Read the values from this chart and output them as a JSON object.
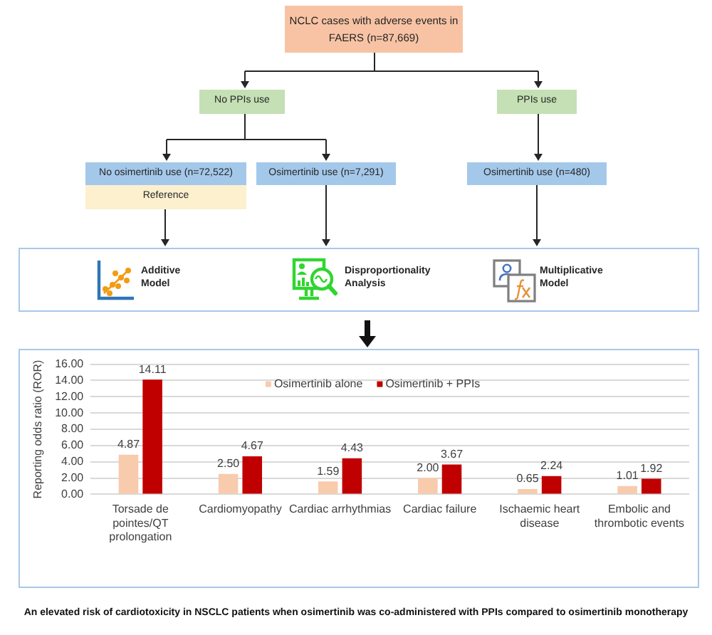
{
  "chart_data": [
    {
      "type": "other",
      "annotations": [
        "NCLC cases with adverse events in FAERS (n=87,669)",
        "No PPIs use",
        "PPIs use",
        "No osimertinib use (n=72,522)",
        "Osimertinib use (n=7,291)",
        "Osimertinib use (n=480)",
        "Reference",
        "Additive Model",
        "Disproportionality Analysis",
        "Multiplicative Model"
      ]
    },
    {
      "type": "bar",
      "ylabel": "Reporting odds ratio (ROR)",
      "categories": [
        "Torsade de pointes/QT prolongation",
        "Cardiomyopathy",
        "Cardiac arrhythmias",
        "Cardiac failure",
        "Ischaemic heart disease",
        "Embolic and thrombotic events"
      ],
      "series": [
        {
          "name": "Osimertinib alone",
          "color": "#f8cbad",
          "values": [
            4.87,
            2.5,
            1.59,
            2.0,
            0.65,
            1.01
          ],
          "value_labels": [
            "4.87",
            "2.50",
            "1.59",
            "2.00",
            "0.65",
            "1.01"
          ]
        },
        {
          "name": "Osimertinib + PPIs",
          "color": "#c00000",
          "values": [
            14.11,
            4.67,
            4.43,
            3.67,
            2.24,
            1.92
          ],
          "value_labels": [
            "14.11",
            "4.67",
            "4.43",
            "3.67",
            "2.24",
            "1.92"
          ]
        }
      ],
      "ylim": [
        0,
        16
      ],
      "yticks": [
        {
          "value": 0,
          "label": "0.00"
        },
        {
          "value": 2,
          "label": "2.00"
        },
        {
          "value": 4,
          "label": "4.00"
        },
        {
          "value": 6,
          "label": "6.00"
        },
        {
          "value": 8,
          "label": "8.00"
        },
        {
          "value": 10,
          "label": "10.00"
        },
        {
          "value": 12,
          "label": "12.00"
        },
        {
          "value": 14,
          "label": "14.00"
        },
        {
          "value": 16,
          "label": "16.00"
        }
      ],
      "grid": "y",
      "legend": "top",
      "annotations": [
        "An elevated risk of cardiotoxicity in NSCLC patients when osimertinib was co-administered with PPIs compared to osimertinib monotherapy"
      ]
    }
  ]
}
